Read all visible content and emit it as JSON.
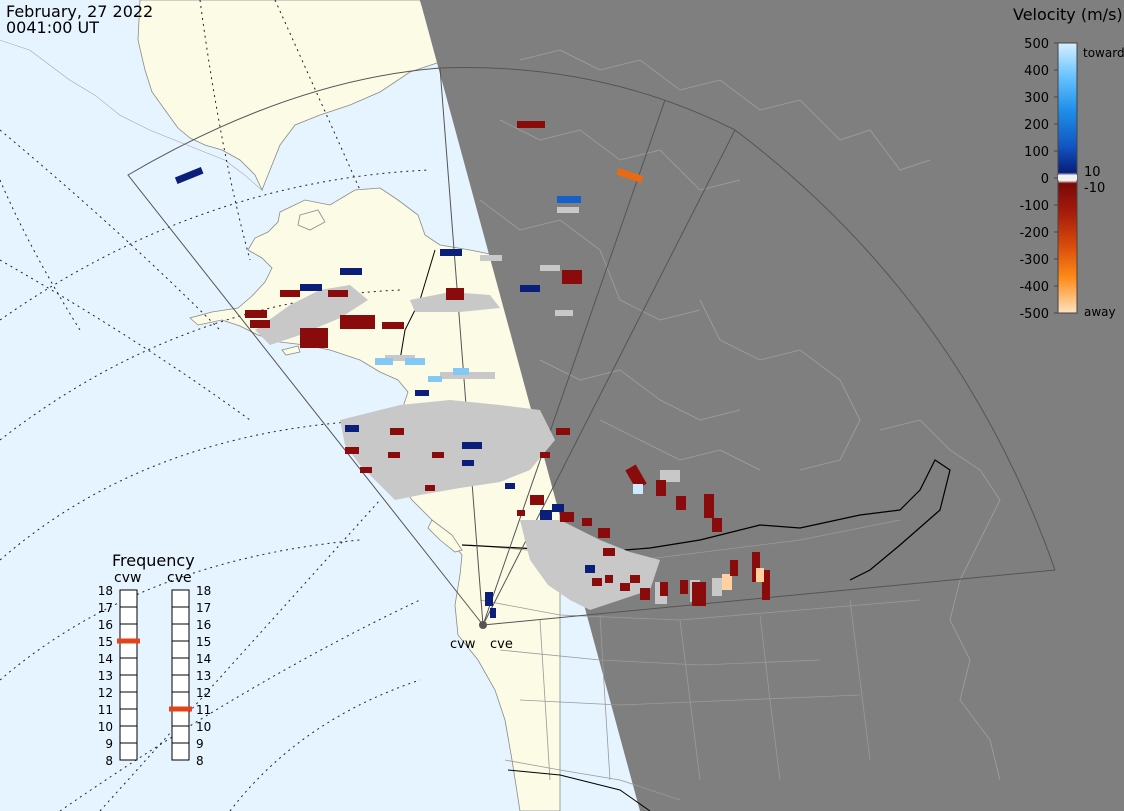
{
  "header": {
    "date": "February, 27 2022",
    "time": "0041:00 UT"
  },
  "colorbar": {
    "title": "Velocity (m/s)",
    "ticks": [
      "500",
      "400",
      "300",
      "200",
      "100",
      "0",
      "-100",
      "-200",
      "-300",
      "-400",
      "-500"
    ],
    "small_pos": "10",
    "small_neg": "-10",
    "toward_label": "toward",
    "away_label": "away",
    "colors": {
      "toward_light": "#cde9ff",
      "toward_mid": "#1e8fe8",
      "toward_dark": "#0b2f9a",
      "zero_band": "#e8e8e8",
      "away_dark": "#8a0b0b",
      "away_mid": "#e8560b",
      "away_light": "#ffd9b0"
    }
  },
  "frequency": {
    "title": "Frequency",
    "radars": [
      "cvw",
      "cve"
    ],
    "range_min": 8,
    "range_max": 18,
    "cvw_value": 15,
    "cve_value": 11,
    "indicator_color": "#e0441b"
  },
  "radar_sites": {
    "left": "cvw",
    "right": "cve"
  },
  "map_colors": {
    "ocean": "#e6f4ff",
    "land": "#fbfbe6",
    "night": "#7f7f7f",
    "ground_scatter": "#c8c8c8"
  }
}
